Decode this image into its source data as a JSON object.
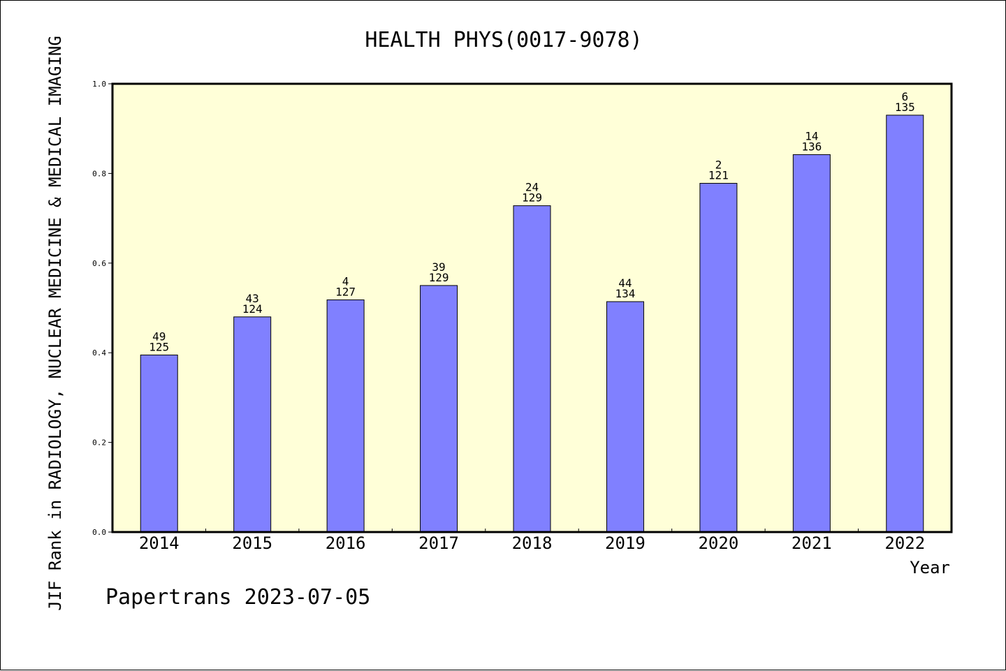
{
  "chart_data": {
    "type": "bar",
    "title": "HEALTH PHYS(0017-9078)",
    "xlabel": "Year",
    "ylabel": "JIF Rank in RADIOLOGY, NUCLEAR MEDICINE & MEDICAL IMAGING",
    "ylim": [
      0,
      1.0
    ],
    "yticks": [
      "0.0",
      "0.2",
      "0.4",
      "0.6",
      "0.8",
      "1.0"
    ],
    "categories": [
      "2014",
      "2015",
      "2016",
      "2017",
      "2018",
      "2019",
      "2020",
      "2021",
      "2022"
    ],
    "values": [
      0.395,
      0.48,
      0.518,
      0.55,
      0.728,
      0.514,
      0.778,
      0.842,
      0.93
    ],
    "rank_labels": [
      "49",
      "43",
      "4",
      "39",
      "24",
      "44",
      "2",
      "14",
      "6"
    ],
    "total_labels": [
      "125",
      "124",
      "127",
      "129",
      "129",
      "134",
      "121",
      "136",
      "135"
    ],
    "grid": false,
    "legend": "none",
    "colors": {
      "bar": "#8080ff",
      "plot_background": "#ffffd8",
      "axis": "#000000"
    }
  },
  "footer": {
    "credit": "Papertrans 2023-07-05"
  }
}
